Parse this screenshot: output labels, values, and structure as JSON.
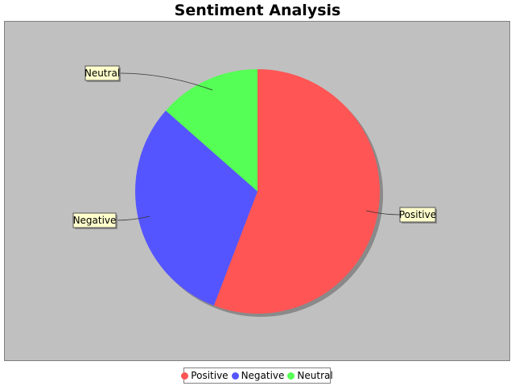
{
  "chart_data": {
    "type": "pie",
    "title": "Sentiment Analysis",
    "slices": [
      {
        "label": "Positive",
        "value": 55.8,
        "color": "#ff5555"
      },
      {
        "label": "Negative",
        "value": 30.7,
        "color": "#5555ff"
      },
      {
        "label": "Neutral",
        "value": 13.5,
        "color": "#55ff55"
      }
    ],
    "legend_position": "bottom",
    "background_color": "#c0c0c0"
  },
  "legend": {
    "items": [
      {
        "label": "Positive",
        "color": "#ff5555"
      },
      {
        "label": "Negative",
        "color": "#5555ff"
      },
      {
        "label": "Neutral",
        "color": "#55ff55"
      }
    ]
  }
}
